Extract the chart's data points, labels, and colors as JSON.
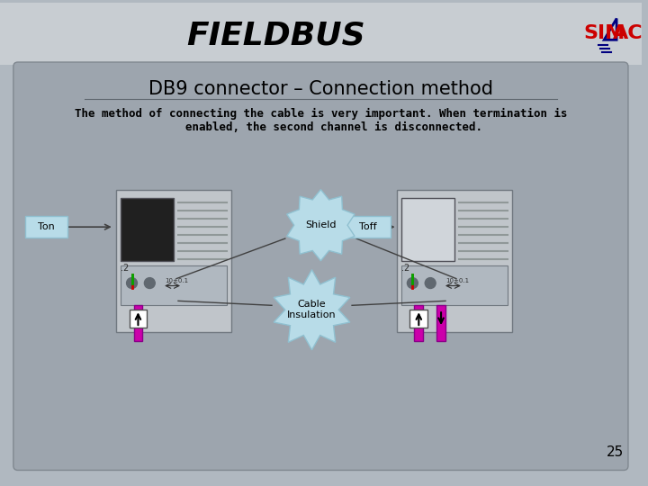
{
  "title": "FIELDBUS",
  "subtitle": "DB9 connector – Connection method",
  "body_text_line1": "The method of connecting the cable is very important. When termination is",
  "body_text_line2": "    enabled, the second channel is disconnected.",
  "page_number": "25",
  "bg_color": "#b0b8c0",
  "slide_bg": "#a8b0b8",
  "content_bg": "#a0a8b0",
  "header_bg": "#c8cdd2",
  "title_color": "#000000",
  "subtitle_color": "#000000",
  "body_color": "#000000",
  "simac_red": "#cc0000",
  "simac_blue": "#000080",
  "label_ton": "Ton",
  "label_toff": "Toff",
  "label_shield": "Shield",
  "label_cable": "Cable\nInsulation",
  "callout_bg": "#b8dce8",
  "starburst_bg": "#b8dce8",
  "magenta": "#cc00aa",
  "connector_gray": "#909090",
  "dark_gray": "#505050"
}
